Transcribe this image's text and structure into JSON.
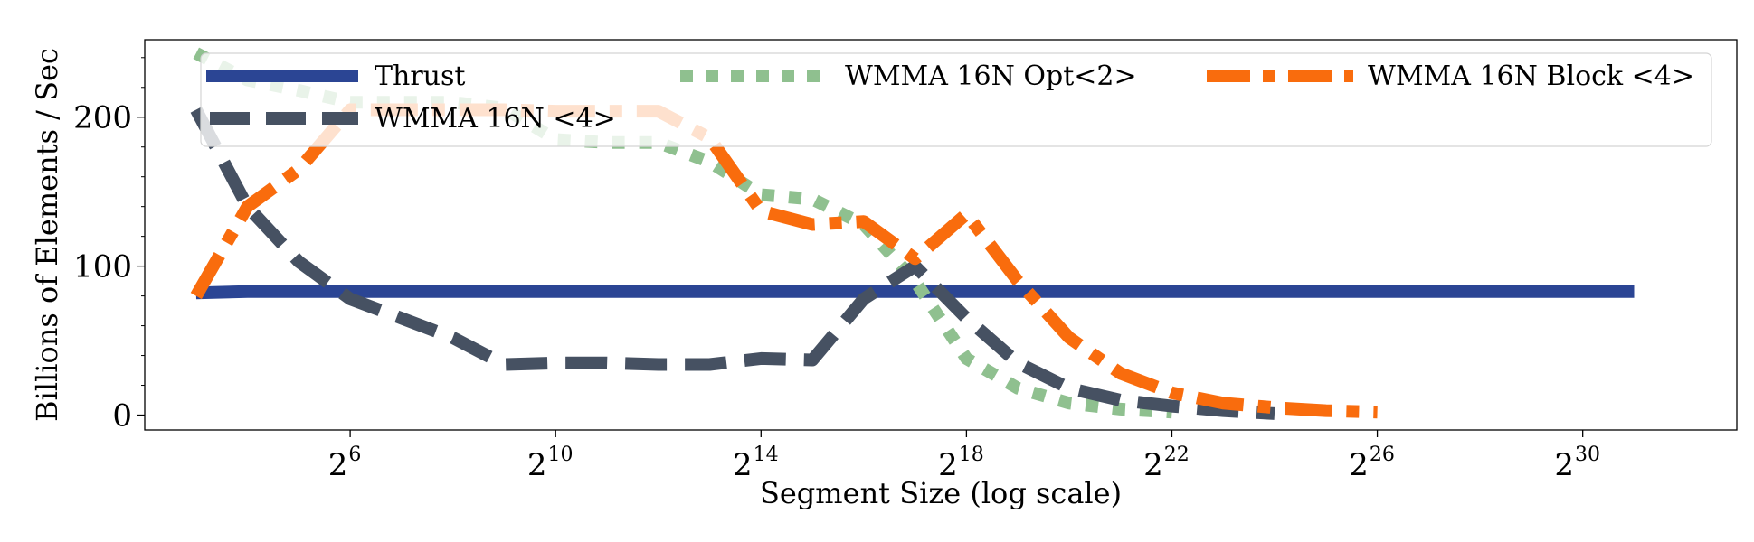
{
  "chart_data": {
    "type": "line",
    "title": "",
    "xlabel": "Segment Size (log scale)",
    "ylabel": "Billions of Elements / Sec",
    "x_scale": "log2",
    "xlim_log2": [
      2,
      33
    ],
    "ylim": [
      -10,
      252
    ],
    "x_ticks": [
      {
        "base": "2",
        "exp": "6",
        "log2": 6
      },
      {
        "base": "2",
        "exp": "10",
        "log2": 10
      },
      {
        "base": "2",
        "exp": "14",
        "log2": 14
      },
      {
        "base": "2",
        "exp": "18",
        "log2": 18
      },
      {
        "base": "2",
        "exp": "22",
        "log2": 22
      },
      {
        "base": "2",
        "exp": "26",
        "log2": 26
      },
      {
        "base": "2",
        "exp": "30",
        "log2": 30
      }
    ],
    "y_ticks": [
      {
        "label": "0",
        "value": 0
      },
      {
        "label": "100",
        "value": 100
      },
      {
        "label": "200",
        "value": 200
      }
    ],
    "legend": {
      "location": "upper center",
      "columns": 3
    },
    "series": [
      {
        "name": "Thrust",
        "color": "#2b4594",
        "style": "solid",
        "x_log2": [
          3,
          4,
          5,
          6,
          7,
          8,
          9,
          10,
          11,
          12,
          13,
          14,
          15,
          16,
          17,
          18,
          19,
          20,
          21,
          22,
          23,
          24,
          25,
          26,
          27,
          28,
          29,
          30,
          31
        ],
        "values": [
          82,
          83,
          83,
          83,
          83,
          83,
          83,
          83,
          83,
          83,
          83,
          83,
          83,
          83,
          83,
          83,
          83,
          83,
          83,
          83,
          83,
          83,
          83,
          83,
          83,
          83,
          83,
          83,
          83
        ]
      },
      {
        "name": "WMMA 16N Opt<2>",
        "color": "#8fc08f",
        "style": "dotted",
        "x_log2": [
          3,
          4,
          5,
          6,
          7,
          8,
          9,
          10,
          11,
          12,
          13,
          14,
          15,
          16,
          17,
          18,
          19,
          20,
          21,
          22
        ],
        "values": [
          243,
          225,
          218,
          210,
          210,
          210,
          206,
          185,
          183,
          183,
          170,
          148,
          145,
          128,
          90,
          38,
          18,
          8,
          4,
          2
        ]
      },
      {
        "name": "WMMA 16N <4>",
        "color": "#465162",
        "style": "dashed",
        "x_log2": [
          3,
          4,
          5,
          6,
          7,
          8,
          9,
          10,
          11,
          12,
          13,
          14,
          15,
          16,
          17,
          18,
          19,
          20,
          21,
          22,
          23,
          24
        ],
        "values": [
          205,
          140,
          103,
          78,
          65,
          52,
          34,
          35,
          35,
          34,
          34,
          38,
          37,
          78,
          100,
          65,
          35,
          18,
          10,
          6,
          3,
          1
        ]
      },
      {
        "name": "WMMA 16N Block <4>",
        "color": "#f96c0d",
        "style": "dashdot",
        "x_log2": [
          3,
          4,
          5,
          6,
          7,
          8,
          9,
          10,
          11,
          12,
          13,
          14,
          15,
          16,
          17,
          18,
          19,
          20,
          21,
          22,
          23,
          24,
          25,
          26
        ],
        "values": [
          80,
          140,
          165,
          205,
          205,
          205,
          205,
          204,
          204,
          204,
          186,
          137,
          128,
          130,
          105,
          135,
          90,
          52,
          28,
          15,
          8,
          5,
          3,
          2
        ]
      }
    ]
  }
}
